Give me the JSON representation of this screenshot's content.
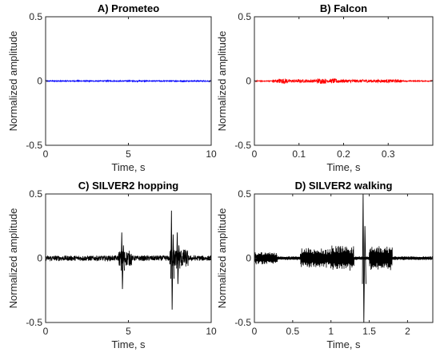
{
  "chart_data": [
    {
      "type": "line",
      "title": "A) Prometeo",
      "xlabel": "Time, s",
      "ylabel": "Normalized amplitude",
      "xlim": [
        0,
        10
      ],
      "ylim": [
        -0.5,
        0.5
      ],
      "xticks": [
        0,
        5,
        10
      ],
      "xtick_labels": [
        "0",
        "5",
        "10"
      ],
      "yticks": [
        -0.5,
        0,
        0.5
      ],
      "ytick_labels": [
        "-0.5",
        "0",
        "0.5"
      ],
      "series": [
        {
          "color": "#0000ff",
          "style": "noise",
          "segments": [
            {
              "x": [
                0,
                10
              ],
              "amp": 0.004
            }
          ]
        }
      ]
    },
    {
      "type": "line",
      "title": "B) Falcon",
      "xlabel": "Time, s",
      "ylabel": "Normalized amplitude",
      "xlim": [
        0,
        0.4
      ],
      "ylim": [
        -0.5,
        0.5
      ],
      "xticks": [
        0,
        0.1,
        0.2,
        0.3
      ],
      "xtick_labels": [
        "0",
        "0.1",
        "0.2",
        "0.3"
      ],
      "yticks": [
        -0.5,
        0,
        0.5
      ],
      "ytick_labels": [
        "-0.5",
        "0",
        "0.5"
      ],
      "series": [
        {
          "color": "#ff0000",
          "style": "noise",
          "segments": [
            {
              "x": [
                0.0,
                0.4
              ],
              "amp": 0.004
            },
            {
              "x": [
                0.04,
                0.33
              ],
              "amp": 0.012
            },
            {
              "x": [
                0.055,
                0.075
              ],
              "amp": 0.02
            },
            {
              "x": [
                0.14,
                0.16
              ],
              "amp": 0.02
            },
            {
              "x": [
                0.17,
                0.19
              ],
              "amp": 0.018
            }
          ]
        }
      ]
    },
    {
      "type": "line",
      "title": "C) SILVER2 hopping",
      "xlabel": "Time, s",
      "ylabel": "Normalized amplitude",
      "xlim": [
        0,
        10
      ],
      "ylim": [
        -0.5,
        0.5
      ],
      "xticks": [
        0,
        5,
        10
      ],
      "xtick_labels": [
        "0",
        "5",
        "10"
      ],
      "yticks": [
        -0.5,
        0,
        0.5
      ],
      "ytick_labels": [
        "-0.5",
        "0",
        "0.5"
      ],
      "series": [
        {
          "color": "#000000",
          "style": "noise",
          "segments": [
            {
              "x": [
                0,
                10
              ],
              "amp": 0.02
            },
            {
              "x": [
                4.4,
                5.2
              ],
              "amp": 0.06
            },
            {
              "x": [
                7.5,
                8.6
              ],
              "amp": 0.07
            }
          ],
          "spikes": [
            {
              "x": 4.6,
              "max": 0.2,
              "min": -0.24
            },
            {
              "x": 7.6,
              "max": 0.37,
              "min": -0.4
            },
            {
              "x": 7.95,
              "max": 0.2,
              "min": -0.2
            }
          ]
        }
      ]
    },
    {
      "type": "line",
      "title": "D) SILVER2 walking",
      "xlabel": "Time, s",
      "ylabel": "Normalized amplitude",
      "xlim": [
        0,
        2.33
      ],
      "ylim": [
        -0.5,
        0.5
      ],
      "xticks": [
        0,
        0.5,
        1,
        1.5,
        2
      ],
      "xtick_labels": [
        "0",
        "0.5",
        "1",
        "1.5",
        "2"
      ],
      "yticks": [
        -0.5,
        0,
        0.5
      ],
      "ytick_labels": [
        "-0.5",
        "0",
        "0.5"
      ],
      "series": [
        {
          "color": "#000000",
          "style": "wave",
          "segments": [
            {
              "x": [
                0,
                2.33
              ],
              "amp": 0.015
            },
            {
              "x": [
                0.0,
                0.3
              ],
              "amp": 0.05
            },
            {
              "x": [
                0.6,
                1.0
              ],
              "amp": 0.08
            },
            {
              "x": [
                1.0,
                1.3
              ],
              "amp": 0.1
            },
            {
              "x": [
                1.5,
                1.8
              ],
              "amp": 0.1
            }
          ],
          "spikes": [
            {
              "x": 1.42,
              "max": 0.5,
              "min": -0.5
            }
          ]
        }
      ]
    }
  ]
}
